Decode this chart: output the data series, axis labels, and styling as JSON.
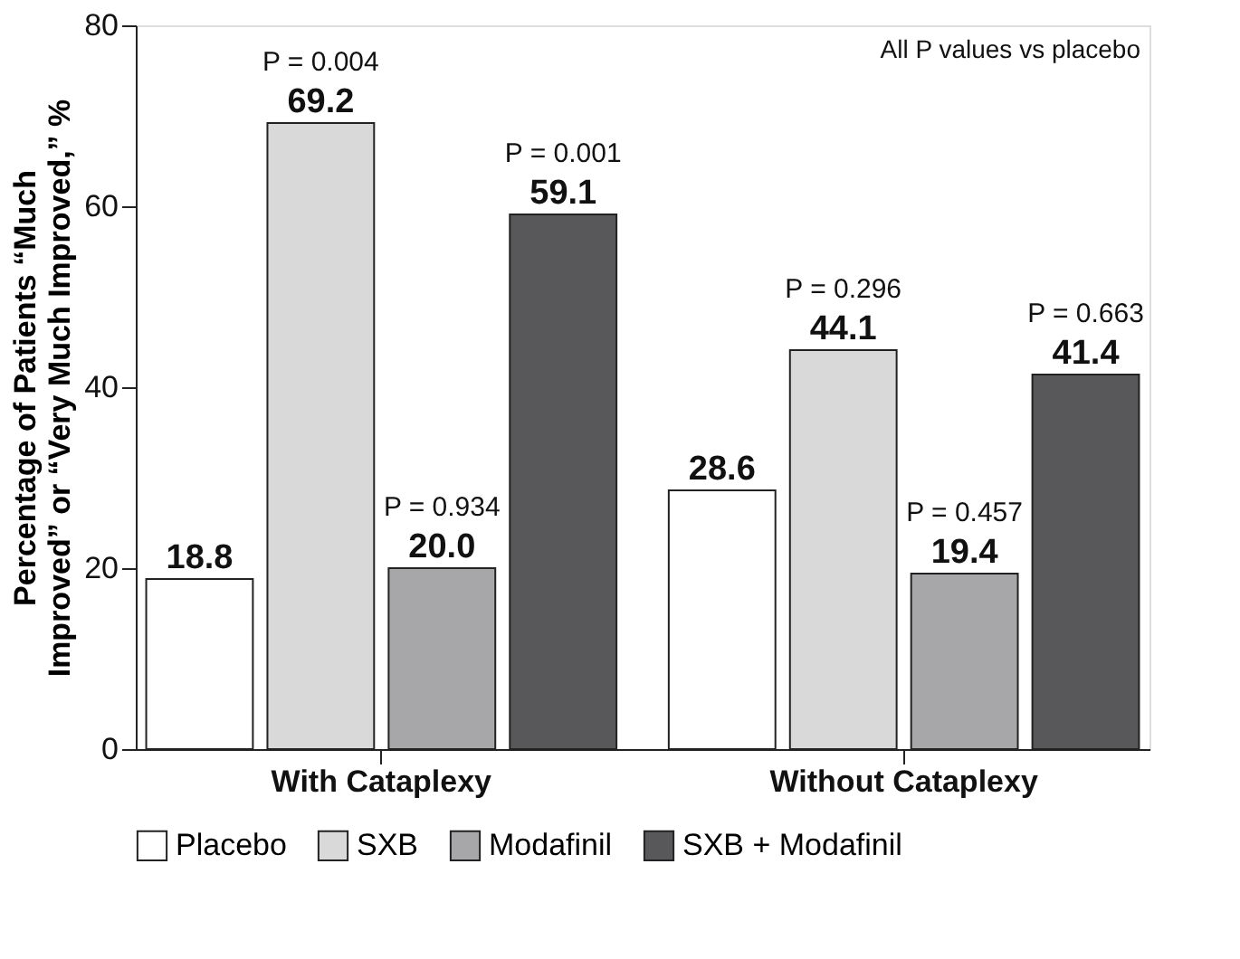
{
  "chart_data": {
    "type": "bar",
    "ylabel": "Percentage of Patients “Much Improved” or “Very Much Improved,” %",
    "categories": [
      "With Cataplexy",
      "Without Cataplexy"
    ],
    "series": [
      {
        "name": "Placebo",
        "color": "#ffffff",
        "values": [
          18.8,
          28.6
        ],
        "value_labels": [
          "18.8",
          "28.6"
        ]
      },
      {
        "name": "SXB",
        "color": "#d9d9d9",
        "values": [
          69.2,
          44.1
        ],
        "value_labels": [
          "69.2",
          "44.1"
        ]
      },
      {
        "name": "Modafinil",
        "color": "#a7a7a9",
        "values": [
          20.0,
          19.4
        ],
        "value_labels": [
          "20.0",
          "19.4"
        ]
      },
      {
        "name": "SXB + Modafinil",
        "color": "#58585a",
        "values": [
          59.1,
          41.4
        ],
        "value_labels": [
          "59.1",
          "41.4"
        ]
      }
    ],
    "annotations": [
      "All P values vs placebo",
      "P = 0.004",
      "P = 0.934",
      "P = 0.001",
      "P = 0.296",
      "P = 0.457",
      "P = 0.663"
    ],
    "ylim": [
      0,
      80
    ],
    "yticks": [
      0,
      20,
      40,
      60,
      80
    ],
    "grid": false,
    "legend": "bottom"
  }
}
